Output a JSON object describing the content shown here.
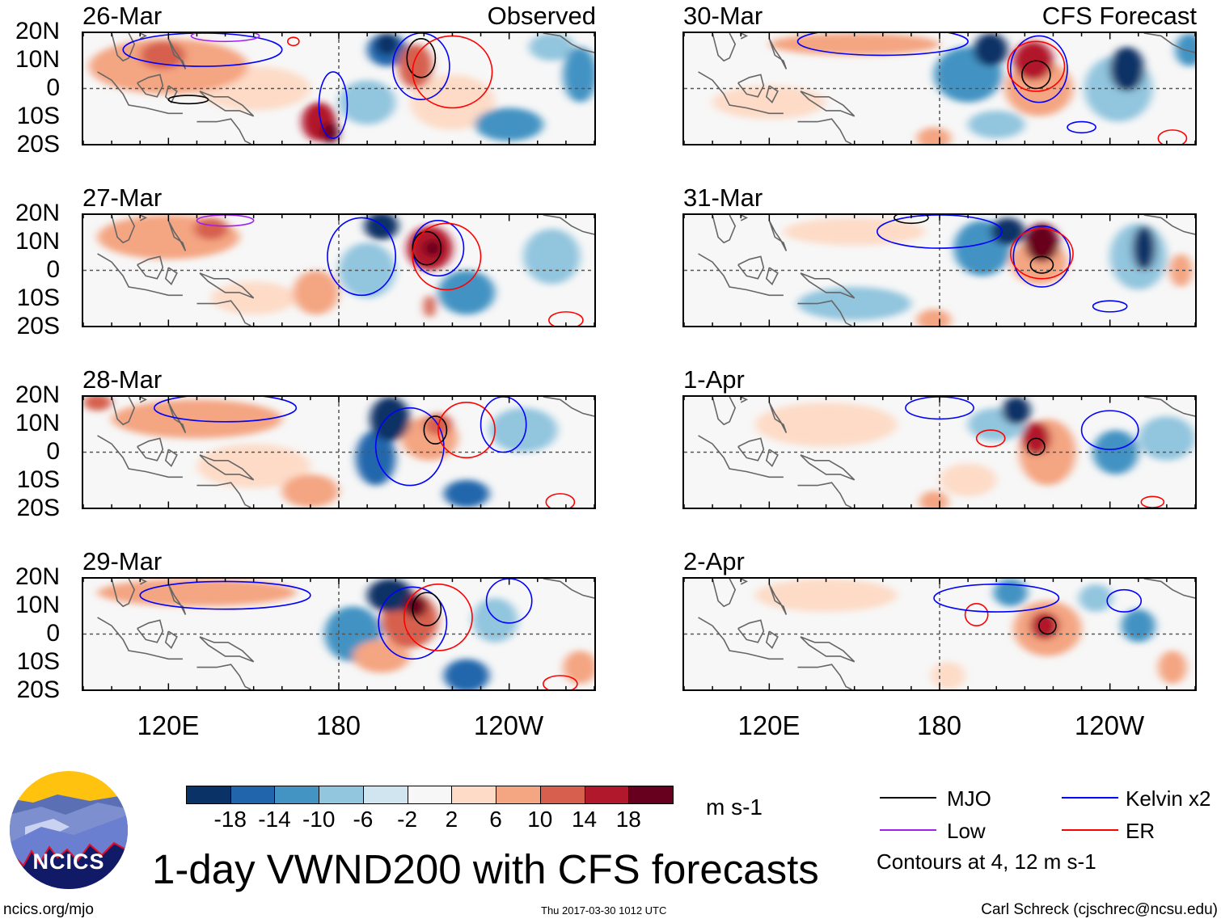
{
  "header": {
    "left_title": "Observed",
    "right_title": "CFS Forecast"
  },
  "lat_ticks": [
    "20N",
    "10N",
    "0",
    "10S",
    "20S"
  ],
  "lon_ticks": [
    "120E",
    "180",
    "120W"
  ],
  "colorbar": {
    "colors": [
      "#0a3266",
      "#2166ac",
      "#4393c3",
      "#92c5de",
      "#d1e5f0",
      "#f7f7f7",
      "#fddbc7",
      "#f4a582",
      "#d6604d",
      "#b2182b",
      "#67001f"
    ],
    "labels": [
      "-18",
      "-14",
      "-10",
      "-6",
      "-2",
      "2",
      "6",
      "10",
      "14",
      "18"
    ],
    "units": "m s-1"
  },
  "legend": {
    "items": [
      {
        "label": "MJO",
        "color": "#000000"
      },
      {
        "label": "Kelvin x2",
        "color": "#0000ff"
      },
      {
        "label": "Low",
        "color": "#a020f0"
      },
      {
        "label": "ER",
        "color": "#ff0000"
      }
    ],
    "note": "Contours at 4, 12 m s-1"
  },
  "title": "1-day VWND200 with CFS forecasts",
  "footer": {
    "left": "ncics.org/mjo",
    "center": "Thu 2017-03-30 1012 UTC",
    "right": "Carl Schreck (cjschrec@ncsu.edu)"
  },
  "logo": {
    "text": "NCICS"
  },
  "chart_data": {
    "type": "heatmap",
    "variable": "VWND200 anomaly (m s-1)",
    "lon_range": [
      90,
      270
    ],
    "lat_range": [
      -20,
      20
    ],
    "panels": [
      {
        "date": "26-Mar",
        "source": "Observed",
        "features": [
          [
            10,
            120,
            8,
            28,
            10
          ],
          [
            14,
            118,
            12,
            8,
            5
          ],
          [
            6,
            150,
            0,
            20,
            8
          ],
          [
            16,
            173,
            -12,
            6,
            7
          ],
          [
            20,
            177,
            -16,
            3,
            4
          ],
          [
            -14,
            197,
            14,
            7,
            6
          ],
          [
            -20,
            197,
            16,
            4,
            4
          ],
          [
            -6,
            190,
            -5,
            10,
            8
          ],
          [
            14,
            207,
            8,
            6,
            8
          ],
          [
            6,
            220,
            -5,
            15,
            10
          ],
          [
            -12,
            240,
            -13,
            12,
            6
          ],
          [
            -10,
            265,
            5,
            6,
            10
          ],
          [
            -6,
            255,
            15,
            8,
            5
          ]
        ],
        "contours": [
          [
            "Kelvin",
            209,
            8,
            10,
            12
          ],
          [
            "MJO",
            209,
            11,
            5,
            7
          ],
          [
            "ER",
            220,
            6,
            14,
            13
          ],
          [
            "Kelvin",
            132,
            14,
            28,
            6
          ],
          [
            "Kelvin",
            178,
            -6,
            5,
            12
          ],
          [
            "MJO",
            127,
            -4,
            7,
            1.5
          ],
          [
            "Low",
            140,
            19,
            12,
            2
          ],
          [
            "ER",
            164,
            17,
            2,
            1.5
          ]
        ]
      },
      {
        "date": "27-Mar",
        "source": "Observed",
        "features": [
          [
            10,
            120,
            12,
            25,
            8
          ],
          [
            14,
            135,
            15,
            6,
            4
          ],
          [
            -18,
            195,
            16,
            6,
            5
          ],
          [
            -6,
            190,
            0,
            10,
            10
          ],
          [
            16,
            212,
            8,
            8,
            8
          ],
          [
            20,
            213,
            8,
            3,
            3
          ],
          [
            10,
            172,
            -8,
            8,
            8
          ],
          [
            -10,
            225,
            -8,
            10,
            8
          ],
          [
            -6,
            255,
            5,
            10,
            10
          ],
          [
            6,
            150,
            -10,
            15,
            6
          ],
          [
            14,
            212,
            -13,
            2,
            4
          ]
        ],
        "contours": [
          [
            "Kelvin",
            215,
            8,
            9,
            10
          ],
          [
            "MJO",
            211,
            8,
            5,
            6
          ],
          [
            "ER",
            218,
            5,
            12,
            12
          ],
          [
            "Kelvin",
            188,
            5,
            12,
            14
          ],
          [
            "Low",
            140,
            18,
            10,
            2
          ],
          [
            "ER",
            260,
            -18,
            6,
            3
          ]
        ]
      },
      {
        "date": "28-Mar",
        "source": "Observed",
        "features": [
          [
            10,
            130,
            12,
            30,
            7
          ],
          [
            -20,
            198,
            12,
            7,
            8
          ],
          [
            -14,
            193,
            -2,
            7,
            10
          ],
          [
            10,
            212,
            5,
            10,
            8
          ],
          [
            14,
            215,
            10,
            5,
            4
          ],
          [
            8,
            170,
            -14,
            10,
            6
          ],
          [
            -14,
            225,
            -15,
            8,
            5
          ],
          [
            -6,
            245,
            8,
            12,
            8
          ],
          [
            6,
            150,
            -5,
            20,
            8
          ],
          [
            14,
            95,
            18,
            5,
            3
          ]
        ],
        "contours": [
          [
            "Kelvin",
            205,
            2,
            12,
            14
          ],
          [
            "MJO",
            214,
            8,
            4,
            5
          ],
          [
            "ER",
            225,
            8,
            10,
            10
          ],
          [
            "Kelvin",
            238,
            10,
            8,
            10
          ],
          [
            "Kelvin",
            140,
            16,
            25,
            5
          ],
          [
            "ER",
            258,
            -18,
            5,
            3
          ]
        ]
      },
      {
        "date": "29-Mar",
        "source": "Observed",
        "features": [
          [
            10,
            130,
            15,
            35,
            5
          ],
          [
            -20,
            198,
            14,
            8,
            6
          ],
          [
            -10,
            185,
            0,
            10,
            10
          ],
          [
            14,
            205,
            5,
            10,
            10
          ],
          [
            20,
            207,
            10,
            4,
            4
          ],
          [
            -14,
            225,
            -15,
            8,
            6
          ],
          [
            -8,
            235,
            5,
            8,
            8
          ],
          [
            10,
            195,
            -8,
            10,
            6
          ],
          [
            8,
            265,
            -12,
            6,
            6
          ]
        ],
        "contours": [
          [
            "Kelvin",
            206,
            4,
            12,
            13
          ],
          [
            "MJO",
            211,
            9,
            5,
            6
          ],
          [
            "ER",
            215,
            6,
            12,
            12
          ],
          [
            "Kelvin",
            140,
            14,
            30,
            5
          ],
          [
            "Kelvin",
            240,
            12,
            8,
            8
          ],
          [
            "ER",
            258,
            -18,
            6,
            3
          ]
        ]
      },
      {
        "date": "30-Mar",
        "source": "CFS Forecast",
        "features": [
          [
            8,
            150,
            16,
            30,
            4
          ],
          [
            -20,
            198,
            14,
            6,
            6
          ],
          [
            -10,
            190,
            5,
            12,
            10
          ],
          [
            18,
            213,
            10,
            7,
            7
          ],
          [
            8,
            215,
            0,
            12,
            10
          ],
          [
            -20,
            246,
            7,
            6,
            8
          ],
          [
            -8,
            243,
            0,
            12,
            12
          ],
          [
            -6,
            200,
            -13,
            10,
            5
          ],
          [
            10,
            178,
            -18,
            6,
            4
          ],
          [
            -10,
            268,
            14,
            5,
            6
          ],
          [
            6,
            120,
            -5,
            20,
            6
          ]
        ],
        "contours": [
          [
            "Kelvin",
            215,
            7,
            10,
            12
          ],
          [
            "MJO",
            214,
            5,
            5,
            5
          ],
          [
            "ER",
            214,
            8,
            10,
            9
          ],
          [
            "Kelvin",
            160,
            17,
            30,
            5
          ],
          [
            "Kelvin",
            230,
            -14,
            5,
            2
          ],
          [
            "ER",
            262,
            -18,
            5,
            3
          ]
        ]
      },
      {
        "date": "31-Mar",
        "source": "CFS Forecast",
        "features": [
          [
            6,
            150,
            14,
            25,
            5
          ],
          [
            -18,
            204,
            14,
            6,
            5
          ],
          [
            -10,
            195,
            8,
            10,
            10
          ],
          [
            20,
            216,
            10,
            6,
            7
          ],
          [
            10,
            215,
            3,
            10,
            8
          ],
          [
            -18,
            252,
            8,
            4,
            8
          ],
          [
            -8,
            250,
            5,
            10,
            12
          ],
          [
            8,
            265,
            0,
            4,
            6
          ],
          [
            10,
            178,
            -18,
            6,
            4
          ],
          [
            -6,
            150,
            -12,
            20,
            6
          ]
        ],
        "contours": [
          [
            "Kelvin",
            216,
            5,
            10,
            11
          ],
          [
            "MJO",
            216,
            2,
            4,
            3
          ],
          [
            "ER",
            216,
            6,
            11,
            9
          ],
          [
            "Kelvin",
            180,
            14,
            22,
            6
          ],
          [
            "Kelvin",
            240,
            -13,
            6,
            2
          ],
          [
            "MJO",
            170,
            19,
            6,
            2
          ]
        ]
      },
      {
        "date": "1-Apr",
        "source": "CFS Forecast",
        "features": [
          [
            6,
            140,
            10,
            25,
            8
          ],
          [
            -18,
            207,
            15,
            5,
            5
          ],
          [
            -8,
            200,
            10,
            10,
            6
          ],
          [
            18,
            214,
            5,
            5,
            6
          ],
          [
            10,
            218,
            0,
            10,
            12
          ],
          [
            -10,
            242,
            0,
            8,
            8
          ],
          [
            -6,
            260,
            5,
            10,
            8
          ],
          [
            10,
            178,
            -18,
            5,
            4
          ],
          [
            6,
            190,
            -10,
            10,
            6
          ]
        ],
        "contours": [
          [
            "MJO",
            214,
            2,
            3,
            3
          ],
          [
            "ER",
            198,
            5,
            5,
            3
          ],
          [
            "Kelvin",
            240,
            8,
            10,
            7
          ],
          [
            "Kelvin",
            180,
            16,
            12,
            4
          ],
          [
            "ER",
            255,
            -18,
            4,
            2
          ]
        ]
      },
      {
        "date": "2-Apr",
        "source": "CFS Forecast",
        "features": [
          [
            6,
            140,
            14,
            25,
            6
          ],
          [
            -10,
            205,
            15,
            6,
            5
          ],
          [
            18,
            217,
            3,
            5,
            5
          ],
          [
            10,
            218,
            2,
            12,
            10
          ],
          [
            -10,
            250,
            3,
            6,
            6
          ],
          [
            -6,
            235,
            13,
            6,
            5
          ],
          [
            6,
            183,
            -15,
            6,
            5
          ],
          [
            8,
            262,
            -12,
            5,
            6
          ]
        ],
        "contours": [
          [
            "MJO",
            218,
            3,
            3,
            3
          ],
          [
            "ER",
            193,
            7,
            4,
            4
          ],
          [
            "Kelvin",
            200,
            13,
            22,
            5
          ],
          [
            "Kelvin",
            245,
            12,
            6,
            4
          ]
        ]
      }
    ]
  }
}
